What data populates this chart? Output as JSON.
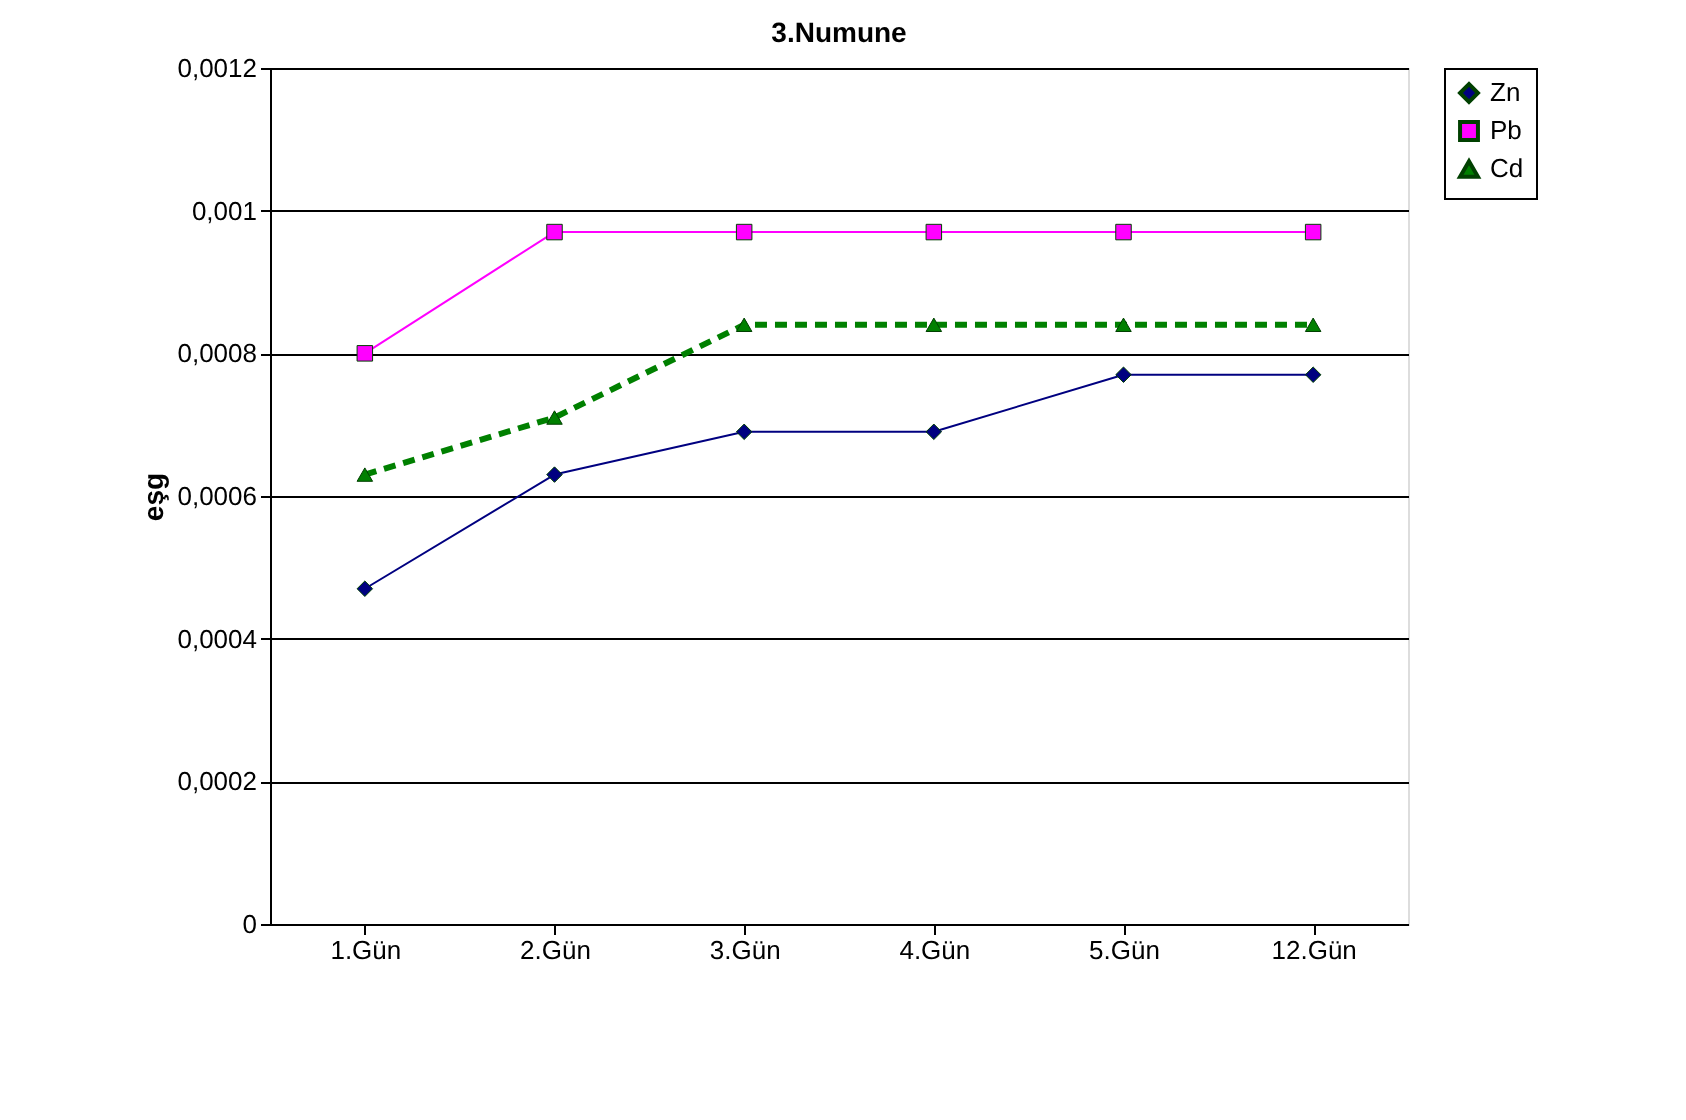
{
  "chart_data": {
    "type": "line",
    "title": "3.Numune",
    "ylabel": "eşg",
    "categories": [
      "1.Gün",
      "2.Gün",
      "3.Gün",
      "4.Gün",
      "5.Gün",
      "12.Gün"
    ],
    "series": [
      {
        "name": "Zn",
        "color": "#000080",
        "marker": "diamond",
        "line_style": "solid",
        "values": [
          0.00047,
          0.00063,
          0.00069,
          0.00069,
          0.00077,
          0.00077
        ]
      },
      {
        "name": "Pb",
        "color": "#ff00ff",
        "marker": "square",
        "line_style": "solid",
        "values": [
          0.0008,
          0.00097,
          0.00097,
          0.00097,
          0.00097,
          0.00097
        ]
      },
      {
        "name": "Cd",
        "color": "#008000",
        "marker": "triangle",
        "line_style": "dashed",
        "values": [
          0.00063,
          0.00071,
          0.00084,
          0.00084,
          0.00084,
          0.00084
        ]
      }
    ],
    "ylim": [
      0,
      0.0012
    ],
    "yticks": [
      0,
      {
        "value": 0.0002,
        "label": "0,0002"
      },
      {
        "value": 0.0004,
        "label": "0,0004"
      },
      {
        "value": 0.0006,
        "label": "0,0006"
      },
      {
        "value": 0.0008,
        "label": "0,0008"
      },
      {
        "value": 0.001,
        "label": "0,001"
      },
      {
        "value": 0.0012,
        "label": "0,0012"
      }
    ],
    "grid": "y",
    "legend": "right"
  }
}
